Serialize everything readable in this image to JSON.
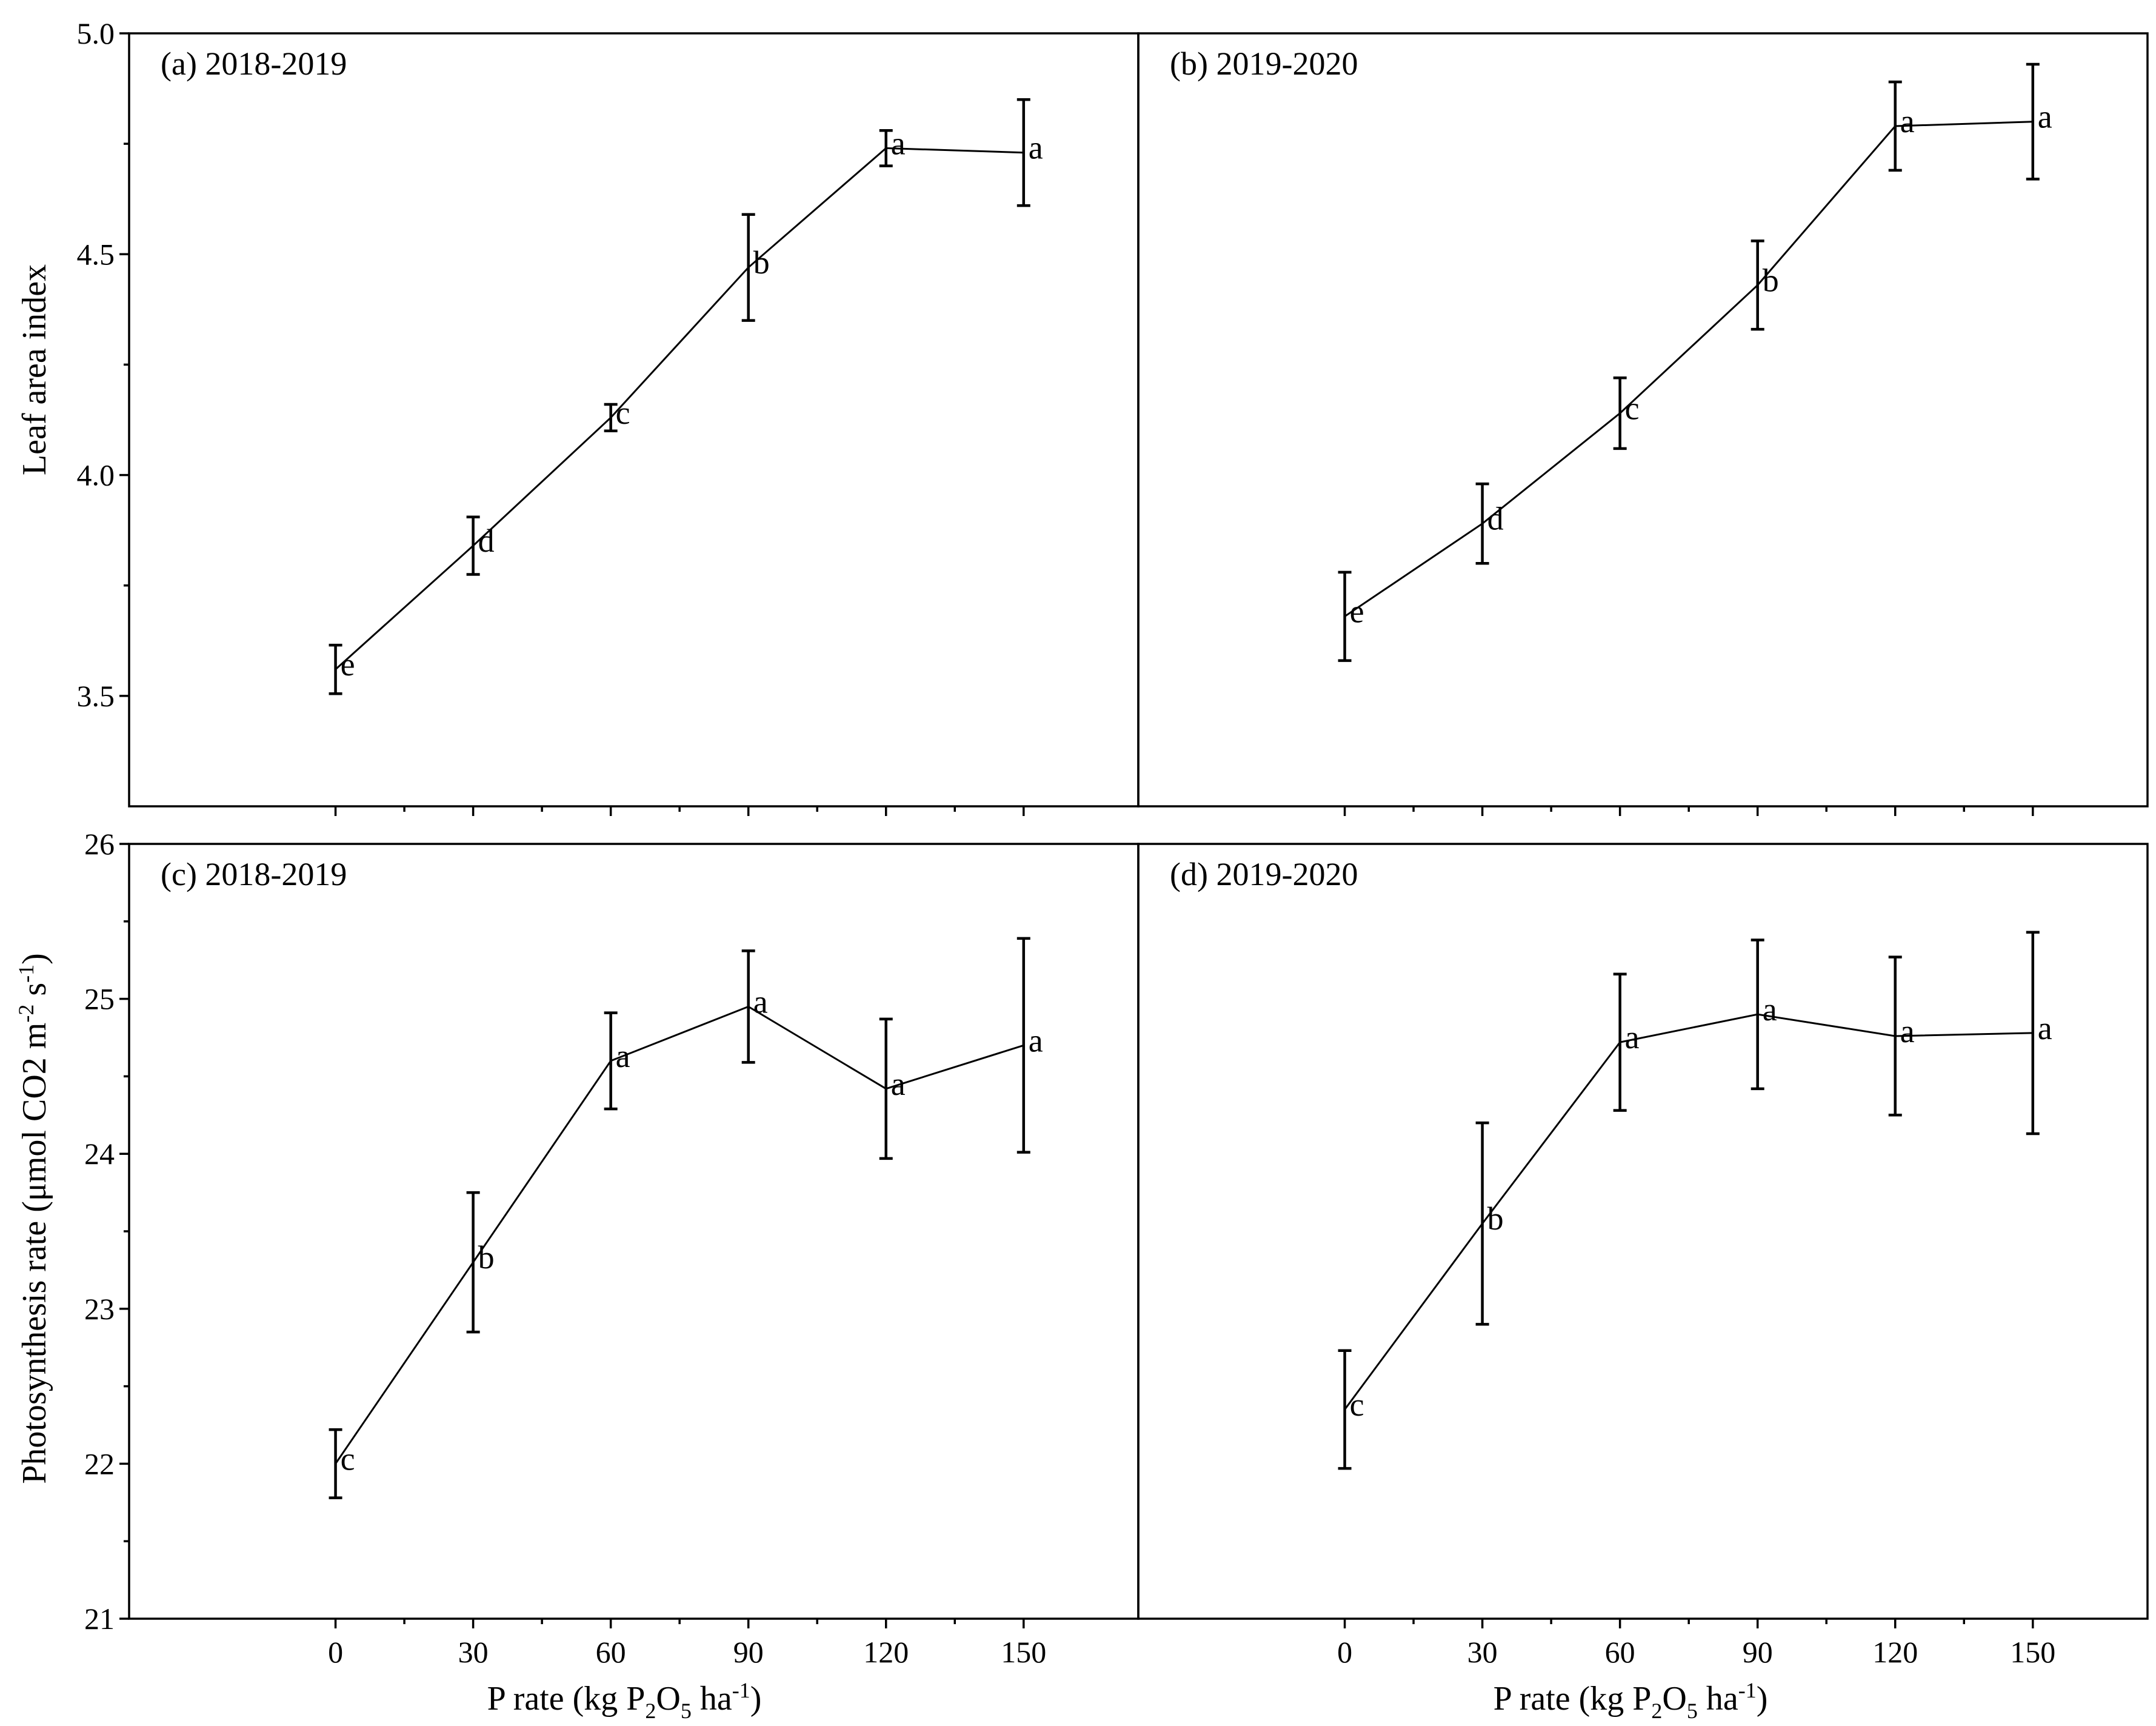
{
  "figure": {
    "xlabel_parts": [
      "P rate (kg P",
      "2",
      "O",
      "5",
      " ha",
      "-1",
      ")"
    ],
    "ylabel_top": "Leaf area index",
    "ylabel_bottom_parts": [
      "Photosynthesis rate (μmol CO2 m",
      "-2",
      " s",
      "-1",
      ")"
    ]
  },
  "chart_data": [
    {
      "id": "a",
      "type": "line",
      "title": "(a) 2018-2019",
      "xlabel": "",
      "ylabel": "Leaf area index",
      "x": [
        0,
        30,
        60,
        90,
        120,
        150
      ],
      "xlim": [
        -45,
        175
      ],
      "ylim": [
        3.25,
        5.0
      ],
      "yticks": [
        3.5,
        4.0,
        4.5,
        5.0
      ],
      "ytick_labels": [
        "3.5",
        "4.0",
        "4.5",
        "5.0"
      ],
      "series": [
        {
          "name": "2018-2019",
          "values": [
            3.56,
            3.84,
            4.13,
            4.47,
            4.74,
            4.73
          ],
          "errors": [
            0.055,
            0.065,
            0.03,
            0.12,
            0.04,
            0.12
          ],
          "letters": [
            "e",
            "d",
            "c",
            "b",
            "a",
            "a"
          ]
        }
      ]
    },
    {
      "id": "b",
      "type": "line",
      "title": "(b) 2019-2020",
      "xlabel": "",
      "ylabel": "",
      "x": [
        0,
        30,
        60,
        90,
        120,
        150
      ],
      "xlim": [
        -45,
        175
      ],
      "ylim": [
        3.25,
        5.0
      ],
      "yticks": [
        3.5,
        4.0,
        4.5,
        5.0
      ],
      "ytick_labels": [
        "3.5",
        "4.0",
        "4.5",
        "5.0"
      ],
      "series": [
        {
          "name": "2019-2020",
          "values": [
            3.68,
            3.89,
            4.14,
            4.43,
            4.79,
            4.8
          ],
          "errors": [
            0.1,
            0.09,
            0.08,
            0.1,
            0.1,
            0.13
          ],
          "letters": [
            "e",
            "d",
            "c",
            "b",
            "a",
            "a"
          ]
        }
      ]
    },
    {
      "id": "c",
      "type": "line",
      "title": "(c) 2018-2019",
      "xlabel": "P rate (kg P2O5 ha-1)",
      "ylabel": "Photosynthesis rate (μmol CO2 m-2 s-1)",
      "x": [
        0,
        30,
        60,
        90,
        120,
        150
      ],
      "xlim": [
        -45,
        175
      ],
      "ylim": [
        21,
        26
      ],
      "yticks": [
        21,
        22,
        23,
        24,
        25,
        26
      ],
      "ytick_labels": [
        "21",
        "22",
        "23",
        "24",
        "25",
        "26"
      ],
      "xtick_labels": [
        "0",
        "30",
        "60",
        "90",
        "120",
        "150"
      ],
      "series": [
        {
          "name": "2018-2019",
          "values": [
            22.0,
            23.3,
            24.6,
            24.95,
            24.42,
            24.7
          ],
          "errors": [
            0.22,
            0.45,
            0.31,
            0.36,
            0.45,
            0.69
          ],
          "letters": [
            "c",
            "b",
            "a",
            "a",
            "a",
            "a"
          ]
        }
      ]
    },
    {
      "id": "d",
      "type": "line",
      "title": "(d) 2019-2020",
      "xlabel": "P rate (kg P2O5 ha-1)",
      "ylabel": "",
      "x": [
        0,
        30,
        60,
        90,
        120,
        150
      ],
      "xlim": [
        -45,
        175
      ],
      "ylim": [
        21,
        26
      ],
      "yticks": [
        21,
        22,
        23,
        24,
        25,
        26
      ],
      "ytick_labels": [
        "21",
        "22",
        "23",
        "24",
        "25",
        "26"
      ],
      "xtick_labels": [
        "0",
        "30",
        "60",
        "90",
        "120",
        "150"
      ],
      "series": [
        {
          "name": "2019-2020",
          "values": [
            22.35,
            23.55,
            24.72,
            24.9,
            24.76,
            24.78
          ],
          "errors": [
            0.38,
            0.65,
            0.44,
            0.48,
            0.51,
            0.65
          ],
          "letters": [
            "c",
            "b",
            "a",
            "a",
            "a",
            "a"
          ]
        }
      ]
    }
  ]
}
